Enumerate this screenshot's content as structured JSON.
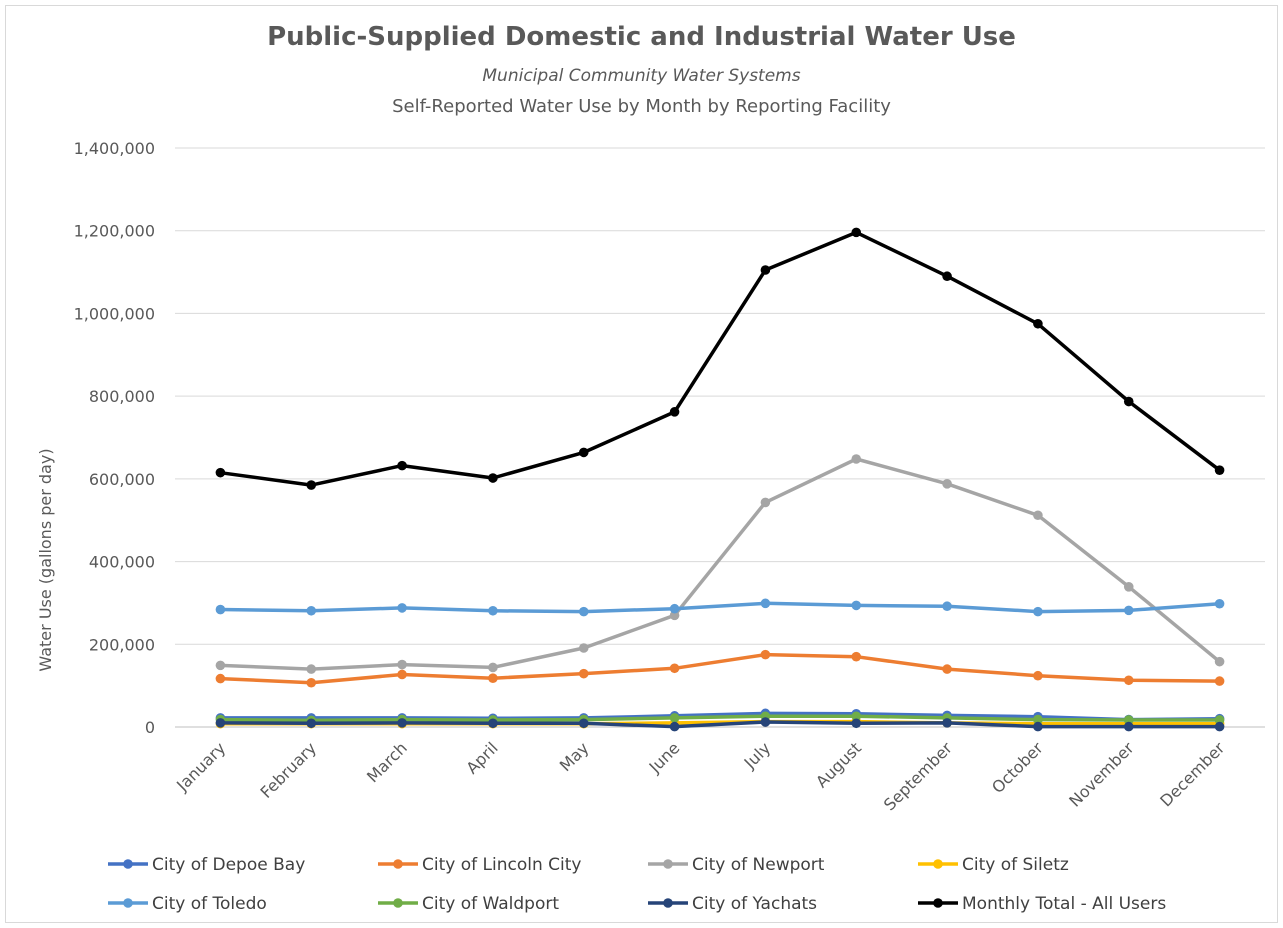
{
  "chart_data": {
    "type": "line",
    "title": "Public-Supplied Domestic and Industrial Water Use",
    "subtitle_italic": "Municipal Community Water Systems",
    "subtitle": "Self-Reported Water Use by Month by Reporting Facility",
    "xlabel": "",
    "ylabel": "Water Use (gallons per day)",
    "ylim": [
      0,
      1400000
    ],
    "yticks": [
      0,
      200000,
      400000,
      600000,
      800000,
      1000000,
      1200000,
      1400000
    ],
    "ytick_labels": [
      "0",
      "200,000",
      "400,000",
      "600,000",
      "800,000",
      "1,000,000",
      "1,200,000",
      "1,400,000"
    ],
    "grid": "horizontal",
    "legend_position": "bottom",
    "categories": [
      "January",
      "February",
      "March",
      "April",
      "May",
      "June",
      "July",
      "August",
      "September",
      "October",
      "November",
      "December"
    ],
    "series": [
      {
        "name": "City of Depoe Bay",
        "color": "#4472c4",
        "values": [
          22000,
          22000,
          22000,
          21000,
          22000,
          27000,
          33000,
          32000,
          28000,
          25000,
          18000,
          20000
        ]
      },
      {
        "name": "City of Lincoln City",
        "color": "#ed7d31",
        "values": [
          117000,
          107000,
          127000,
          118000,
          129000,
          142000,
          175000,
          170000,
          140000,
          124000,
          113000,
          111000
        ]
      },
      {
        "name": "City of Newport",
        "color": "#a5a5a5",
        "values": [
          149000,
          140000,
          151000,
          144000,
          191000,
          270000,
          543000,
          648000,
          588000,
          512000,
          339000,
          158000
        ]
      },
      {
        "name": "City of Siletz",
        "color": "#ffc000",
        "values": [
          8000,
          8000,
          8000,
          8000,
          8000,
          10000,
          13000,
          13000,
          10000,
          8000,
          8000,
          8000
        ]
      },
      {
        "name": "City of Toledo",
        "color": "#5b9bd5",
        "values": [
          284000,
          281000,
          288000,
          281000,
          279000,
          286000,
          299000,
          294000,
          292000,
          279000,
          282000,
          298000
        ]
      },
      {
        "name": "City of Waldport",
        "color": "#70ad47",
        "values": [
          18000,
          16000,
          18000,
          17000,
          18000,
          22000,
          26000,
          26000,
          22000,
          18000,
          17000,
          17000
        ]
      },
      {
        "name": "City of Yachats",
        "color": "#264478",
        "values": [
          10000,
          9000,
          10000,
          9000,
          9000,
          1000,
          12000,
          9000,
          10000,
          1000,
          1000,
          1000
        ]
      },
      {
        "name": "Monthly Total - All Users",
        "color": "#000000",
        "values": [
          615000,
          585000,
          632000,
          602000,
          664000,
          762000,
          1105000,
          1196000,
          1090000,
          975000,
          787000,
          621000
        ]
      }
    ]
  }
}
